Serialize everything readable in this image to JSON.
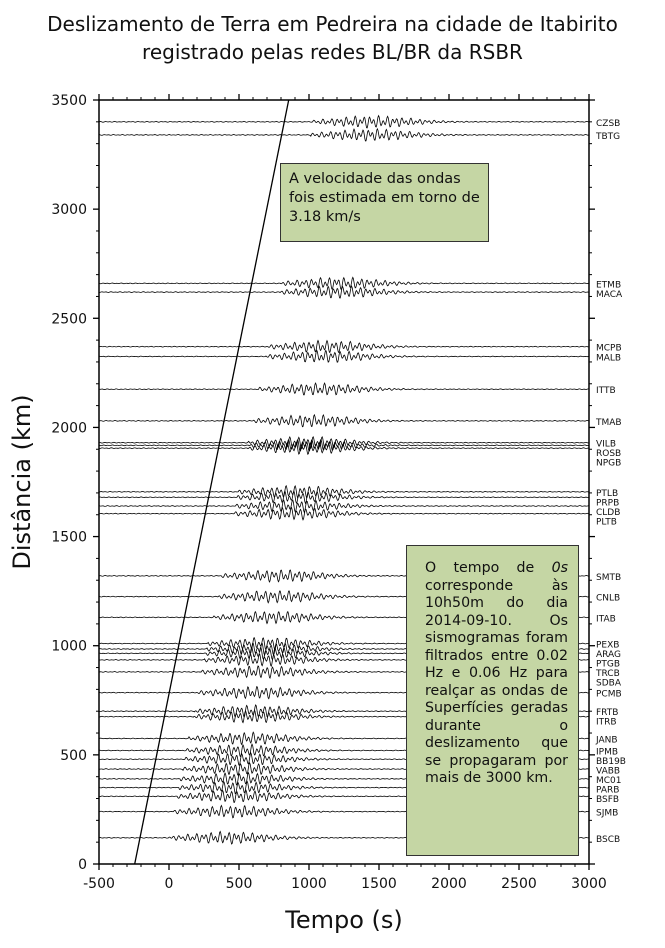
{
  "title": [
    "Deslizamento de Terra em Pedreira na cidade de Itabirito",
    "registrado pelas redes BL/BR da RSBR"
  ],
  "notes": {
    "speed": "A velocidade das ondas fois estimada em torno de 3.18 km/s",
    "time_prefix": "O tempo de ",
    "time_italic": "0s",
    "time_rest": " corresponde às 10h50m do dia 2014-09-10. Os sismogramas foram filtrados entre 0.02 Hz e 0.06 Hz para realçar as ondas de Superfícies geradas durante o deslizamento que se propagaram por mais de 3000 km."
  },
  "chart_data": {
    "type": "line",
    "title": "Deslizamento de Terra em Pedreira na cidade de Itabirito registrado pelas redes BL/BR da RSBR",
    "xlabel": "Tempo (s)",
    "ylabel": "Distância (km)",
    "xlim": [
      -500,
      3000
    ],
    "ylim": [
      0,
      3500
    ],
    "x_ticks": [
      -500,
      0,
      500,
      1000,
      1500,
      2000,
      2500,
      3000
    ],
    "y_ticks": [
      0,
      500,
      1000,
      1500,
      2000,
      2500,
      3000,
      3500
    ],
    "grid": false,
    "stations": [
      {
        "name": "CZSB",
        "distance": 3400
      },
      {
        "name": "TBTG",
        "distance": 3340
      },
      {
        "name": "ETMB",
        "distance": 2660
      },
      {
        "name": "MACA",
        "distance": 2620
      },
      {
        "name": "MCPB",
        "distance": 2370
      },
      {
        "name": "MALB",
        "distance": 2325
      },
      {
        "name": "ITTB",
        "distance": 2175
      },
      {
        "name": "TMAB",
        "distance": 2030
      },
      {
        "name": "VILB",
        "distance": 1930
      },
      {
        "name": "ROSB",
        "distance": 1918
      },
      {
        "name": "NPGB",
        "distance": 1905
      },
      {
        "name": "PTLB",
        "distance": 1705
      },
      {
        "name": "PRPB",
        "distance": 1680
      },
      {
        "name": "CLDB",
        "distance": 1640
      },
      {
        "name": "PLTB",
        "distance": 1605
      },
      {
        "name": "SMTB",
        "distance": 1320
      },
      {
        "name": "CNLB",
        "distance": 1225
      },
      {
        "name": "ITAB",
        "distance": 1130
      },
      {
        "name": "PEXB",
        "distance": 1010
      },
      {
        "name": "ARAG",
        "distance": 985
      },
      {
        "name": "PTGB",
        "distance": 965
      },
      {
        "name": "TRCB",
        "distance": 935
      },
      {
        "name": "SDBA",
        "distance": 880
      },
      {
        "name": "PCMB",
        "distance": 785
      },
      {
        "name": "FRTB",
        "distance": 700
      },
      {
        "name": "ITRB",
        "distance": 675
      },
      {
        "name": "JANB",
        "distance": 575
      },
      {
        "name": "IPMB",
        "distance": 520
      },
      {
        "name": "BB19B",
        "distance": 480
      },
      {
        "name": "VABB",
        "distance": 435
      },
      {
        "name": "MC01",
        "distance": 390
      },
      {
        "name": "PARB",
        "distance": 350
      },
      {
        "name": "BSFB",
        "distance": 310
      },
      {
        "name": "SJMB",
        "distance": 240
      },
      {
        "name": "BSCB",
        "distance": 120
      }
    ],
    "velocity_line": {
      "velocity_km_s": 3.18,
      "points": [
        [
          -245,
          0
        ],
        [
          855,
          3500
        ]
      ]
    }
  }
}
